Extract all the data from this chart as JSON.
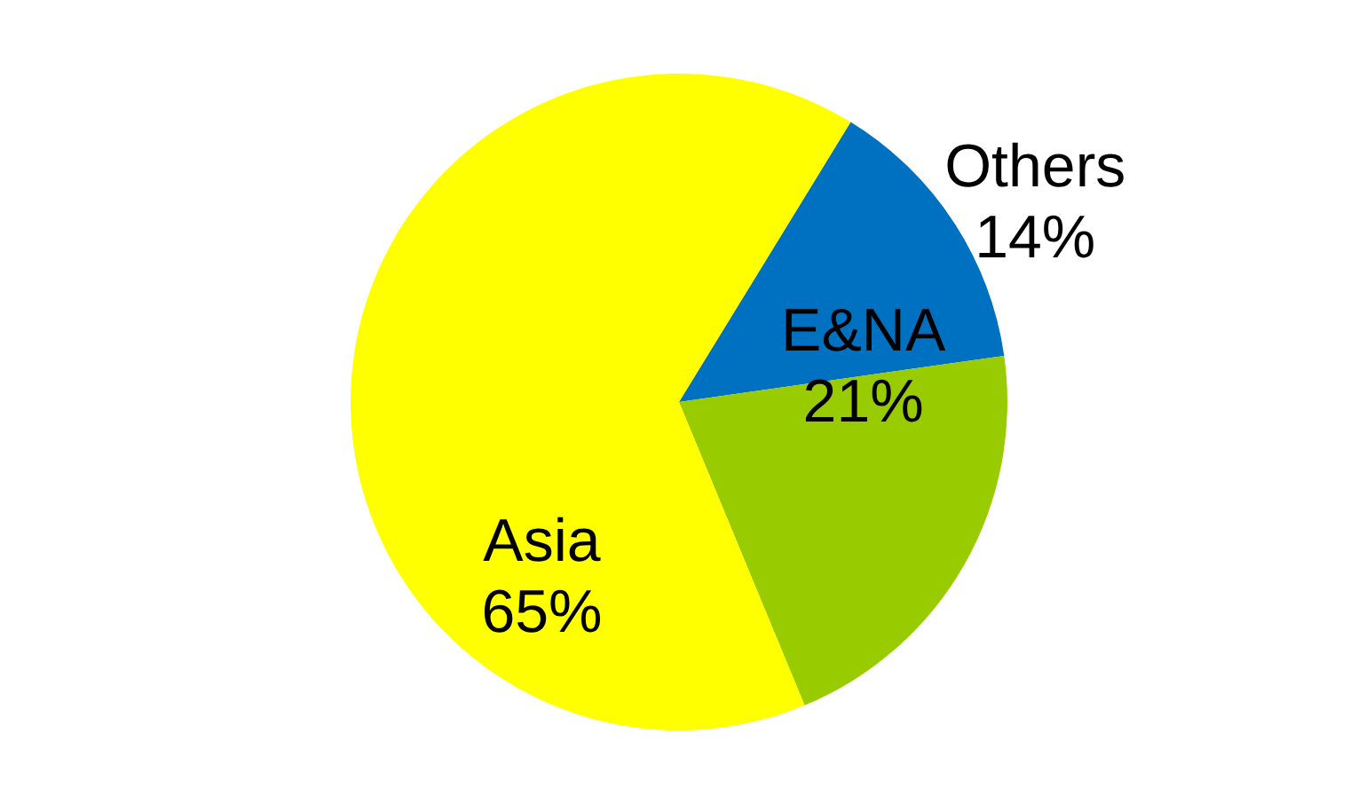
{
  "chart_data": {
    "type": "pie",
    "categories": [
      "Others",
      "E&NA",
      "Asia"
    ],
    "values": [
      14,
      21,
      65
    ],
    "value_labels": [
      "14%",
      "21%",
      "65%"
    ],
    "colors": [
      "#0070c0",
      "#99cc00",
      "#ffff00"
    ]
  }
}
